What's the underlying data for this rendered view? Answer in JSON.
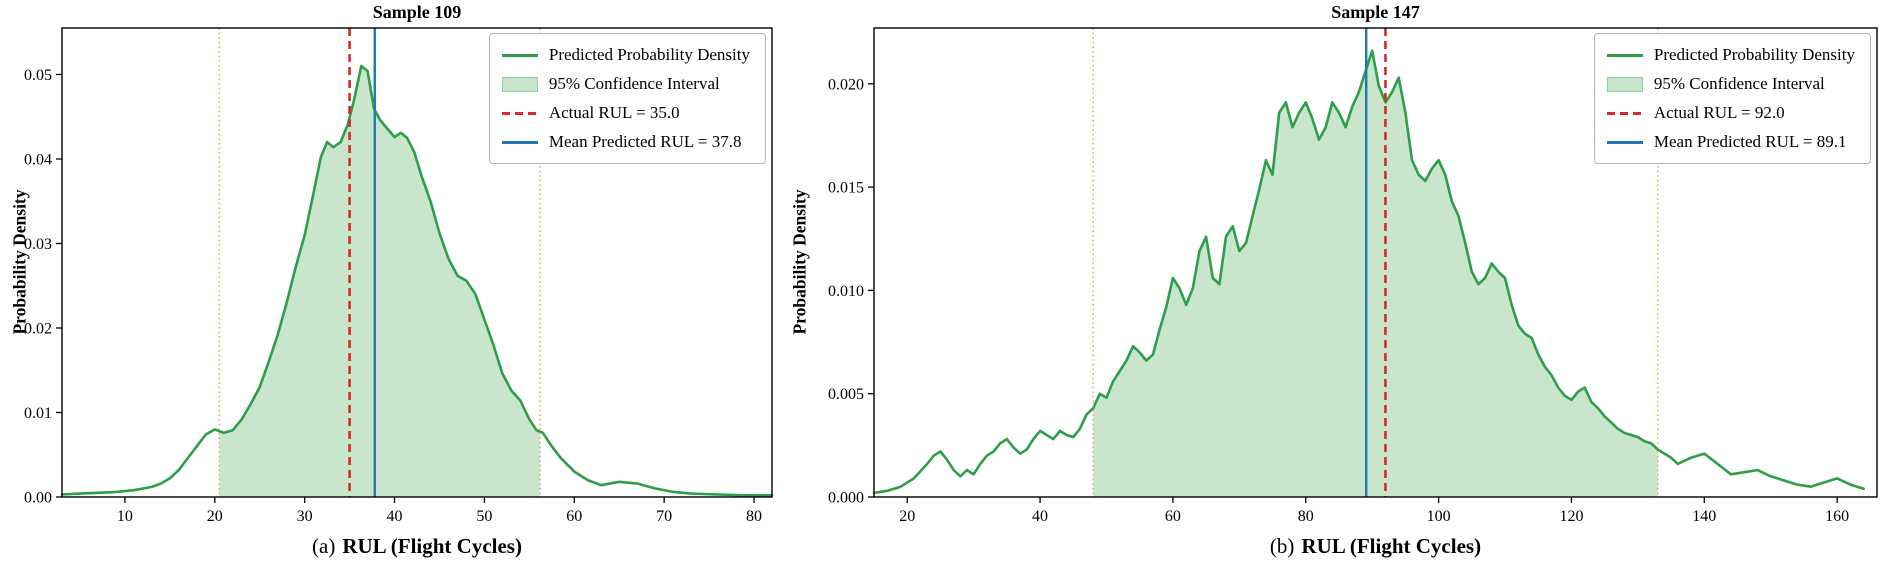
{
  "colors": {
    "density_line": "#2d9e49",
    "ci_fill": "#c9e5cc",
    "ci_fill_edge": "#8fcf9b",
    "actual_line": "#d62a2a",
    "mean_line": "#2077b4",
    "ci_bound_line": "#f0a868",
    "axis": "#000000",
    "background": "#ffffff"
  },
  "chart_data": [
    {
      "type": "line",
      "title": "Sample 109",
      "caption_prefix": "(a)",
      "xlabel": "RUL (Flight Cycles)",
      "ylabel": "Probability Density",
      "xlim": [
        3,
        82
      ],
      "ylim": [
        0,
        0.0555
      ],
      "x_ticks": [
        10,
        20,
        30,
        40,
        50,
        60,
        70,
        80
      ],
      "x_tick_labels": [
        "10",
        "20",
        "30",
        "40",
        "50",
        "60",
        "70",
        "80"
      ],
      "y_ticks": [
        0,
        0.01,
        0.02,
        0.03,
        0.04,
        0.05
      ],
      "y_tick_labels": [
        "0.00",
        "0.01",
        "0.02",
        "0.03",
        "0.04",
        "0.05"
      ],
      "actual_rul": 35.0,
      "mean_predicted_rul": 37.8,
      "ci": [
        20.5,
        56.2
      ],
      "legend": [
        "Predicted Probability Density",
        "95% Confidence Interval",
        "Actual RUL = 35.0",
        "Mean Predicted RUL = 37.8"
      ],
      "curve": [
        [
          3,
          0.0003
        ],
        [
          5,
          0.0004
        ],
        [
          7,
          0.0005
        ],
        [
          9,
          0.0006
        ],
        [
          11,
          0.0008
        ],
        [
          13,
          0.0012
        ],
        [
          14,
          0.0016
        ],
        [
          15,
          0.0022
        ],
        [
          16,
          0.0032
        ],
        [
          17,
          0.0046
        ],
        [
          18,
          0.006
        ],
        [
          19,
          0.0074
        ],
        [
          20,
          0.008
        ],
        [
          21,
          0.0076
        ],
        [
          22,
          0.0079
        ],
        [
          23,
          0.0092
        ],
        [
          24,
          0.011
        ],
        [
          25,
          0.013
        ],
        [
          26,
          0.016
        ],
        [
          27,
          0.0192
        ],
        [
          28,
          0.023
        ],
        [
          29,
          0.0272
        ],
        [
          30,
          0.031
        ],
        [
          31,
          0.036
        ],
        [
          31.8,
          0.0402
        ],
        [
          32.5,
          0.042
        ],
        [
          33.2,
          0.0414
        ],
        [
          34,
          0.042
        ],
        [
          34.8,
          0.0441
        ],
        [
          35.5,
          0.047
        ],
        [
          36.3,
          0.051
        ],
        [
          37,
          0.0504
        ],
        [
          37.7,
          0.046
        ],
        [
          38.4,
          0.0446
        ],
        [
          39.2,
          0.0436
        ],
        [
          40,
          0.0426
        ],
        [
          40.7,
          0.0431
        ],
        [
          41.4,
          0.0425
        ],
        [
          42.2,
          0.0408
        ],
        [
          43,
          0.038
        ],
        [
          44,
          0.035
        ],
        [
          45,
          0.0312
        ],
        [
          46,
          0.0282
        ],
        [
          47,
          0.0262
        ],
        [
          48,
          0.0256
        ],
        [
          49,
          0.024
        ],
        [
          50,
          0.021
        ],
        [
          51,
          0.018
        ],
        [
          52,
          0.0146
        ],
        [
          53,
          0.0126
        ],
        [
          54,
          0.0114
        ],
        [
          55,
          0.0092
        ],
        [
          55.8,
          0.0079
        ],
        [
          56.5,
          0.0076
        ],
        [
          57.5,
          0.006
        ],
        [
          58.5,
          0.0046
        ],
        [
          60,
          0.003
        ],
        [
          61.5,
          0.002
        ],
        [
          63,
          0.0014
        ],
        [
          65,
          0.0018
        ],
        [
          67,
          0.0016
        ],
        [
          69,
          0.001
        ],
        [
          71,
          0.0006
        ],
        [
          73,
          0.0004
        ],
        [
          76,
          0.0003
        ],
        [
          79,
          0.0002
        ],
        [
          82,
          0.0002
        ]
      ]
    },
    {
      "type": "line",
      "title": "Sample 147",
      "caption_prefix": "(b)",
      "xlabel": "RUL (Flight Cycles)",
      "ylabel": "Probability Density",
      "xlim": [
        15,
        166
      ],
      "ylim": [
        0,
        0.0227
      ],
      "x_ticks": [
        20,
        40,
        60,
        80,
        100,
        120,
        140,
        160
      ],
      "x_tick_labels": [
        "20",
        "40",
        "60",
        "80",
        "100",
        "120",
        "140",
        "160"
      ],
      "y_ticks": [
        0,
        0.005,
        0.01,
        0.015,
        0.02
      ],
      "y_tick_labels": [
        "0.000",
        "0.005",
        "0.010",
        "0.015",
        "0.020"
      ],
      "actual_rul": 92.0,
      "mean_predicted_rul": 89.1,
      "ci": [
        48,
        133
      ],
      "legend": [
        "Predicted Probability Density",
        "95% Confidence Interval",
        "Actual RUL = 92.0",
        "Mean Predicted RUL = 89.1"
      ],
      "curve": [
        [
          15,
          0.0002
        ],
        [
          17,
          0.0003
        ],
        [
          19,
          0.0005
        ],
        [
          21,
          0.0009
        ],
        [
          23,
          0.0016
        ],
        [
          24,
          0.002
        ],
        [
          25,
          0.0022
        ],
        [
          26,
          0.0018
        ],
        [
          27,
          0.0013
        ],
        [
          28,
          0.001
        ],
        [
          29,
          0.0013
        ],
        [
          30,
          0.0011
        ],
        [
          31,
          0.0016
        ],
        [
          32,
          0.002
        ],
        [
          33,
          0.0022
        ],
        [
          34,
          0.0026
        ],
        [
          35,
          0.0028
        ],
        [
          36,
          0.0024
        ],
        [
          37,
          0.0021
        ],
        [
          38,
          0.0023
        ],
        [
          39,
          0.0028
        ],
        [
          40,
          0.0032
        ],
        [
          41,
          0.003
        ],
        [
          42,
          0.0028
        ],
        [
          43,
          0.0032
        ],
        [
          44,
          0.003
        ],
        [
          45,
          0.0029
        ],
        [
          46,
          0.0033
        ],
        [
          47,
          0.004
        ],
        [
          48,
          0.0043
        ],
        [
          49,
          0.005
        ],
        [
          50,
          0.0048
        ],
        [
          51,
          0.0056
        ],
        [
          52,
          0.0061
        ],
        [
          53,
          0.0066
        ],
        [
          54,
          0.0073
        ],
        [
          55,
          0.007
        ],
        [
          56,
          0.0066
        ],
        [
          57,
          0.0069
        ],
        [
          58,
          0.0081
        ],
        [
          59,
          0.0092
        ],
        [
          60,
          0.0106
        ],
        [
          61,
          0.0101
        ],
        [
          62,
          0.0093
        ],
        [
          63,
          0.0101
        ],
        [
          64,
          0.0119
        ],
        [
          65,
          0.0126
        ],
        [
          66,
          0.0106
        ],
        [
          67,
          0.0103
        ],
        [
          68,
          0.0126
        ],
        [
          69,
          0.0131
        ],
        [
          70,
          0.0119
        ],
        [
          71,
          0.0123
        ],
        [
          72,
          0.0136
        ],
        [
          73,
          0.0149
        ],
        [
          74,
          0.0163
        ],
        [
          75,
          0.0156
        ],
        [
          76,
          0.0186
        ],
        [
          77,
          0.0191
        ],
        [
          78,
          0.0179
        ],
        [
          79,
          0.0186
        ],
        [
          80,
          0.0191
        ],
        [
          81,
          0.0183
        ],
        [
          82,
          0.0173
        ],
        [
          83,
          0.0179
        ],
        [
          84,
          0.0191
        ],
        [
          85,
          0.0186
        ],
        [
          86,
          0.0179
        ],
        [
          87,
          0.0189
        ],
        [
          88,
          0.0196
        ],
        [
          89,
          0.0206
        ],
        [
          90,
          0.0216
        ],
        [
          91,
          0.0199
        ],
        [
          92,
          0.0191
        ],
        [
          93,
          0.0196
        ],
        [
          94,
          0.0203
        ],
        [
          95,
          0.0186
        ],
        [
          96,
          0.0163
        ],
        [
          97,
          0.0156
        ],
        [
          98,
          0.0153
        ],
        [
          99,
          0.0159
        ],
        [
          100,
          0.0163
        ],
        [
          101,
          0.0156
        ],
        [
          102,
          0.0143
        ],
        [
          103,
          0.0136
        ],
        [
          104,
          0.0123
        ],
        [
          105,
          0.0109
        ],
        [
          106,
          0.0103
        ],
        [
          107,
          0.0106
        ],
        [
          108,
          0.0113
        ],
        [
          109,
          0.0109
        ],
        [
          110,
          0.0106
        ],
        [
          111,
          0.0093
        ],
        [
          112,
          0.0083
        ],
        [
          113,
          0.0079
        ],
        [
          114,
          0.0077
        ],
        [
          115,
          0.0069
        ],
        [
          116,
          0.0063
        ],
        [
          117,
          0.0059
        ],
        [
          118,
          0.0053
        ],
        [
          119,
          0.0049
        ],
        [
          120,
          0.0047
        ],
        [
          121,
          0.0051
        ],
        [
          122,
          0.0053
        ],
        [
          123,
          0.0046
        ],
        [
          124,
          0.0043
        ],
        [
          125,
          0.0039
        ],
        [
          126,
          0.0036
        ],
        [
          127,
          0.0033
        ],
        [
          128,
          0.0031
        ],
        [
          129,
          0.003
        ],
        [
          130,
          0.0029
        ],
        [
          131,
          0.0027
        ],
        [
          132,
          0.0026
        ],
        [
          133,
          0.0023
        ],
        [
          134,
          0.0021
        ],
        [
          135,
          0.0019
        ],
        [
          136,
          0.0016
        ],
        [
          138,
          0.0019
        ],
        [
          140,
          0.0021
        ],
        [
          142,
          0.0016
        ],
        [
          144,
          0.0011
        ],
        [
          146,
          0.0012
        ],
        [
          148,
          0.0013
        ],
        [
          150,
          0.001
        ],
        [
          152,
          0.0008
        ],
        [
          154,
          0.0006
        ],
        [
          156,
          0.0005
        ],
        [
          158,
          0.0007
        ],
        [
          160,
          0.0009
        ],
        [
          162,
          0.0006
        ],
        [
          164,
          0.0004
        ]
      ]
    }
  ]
}
